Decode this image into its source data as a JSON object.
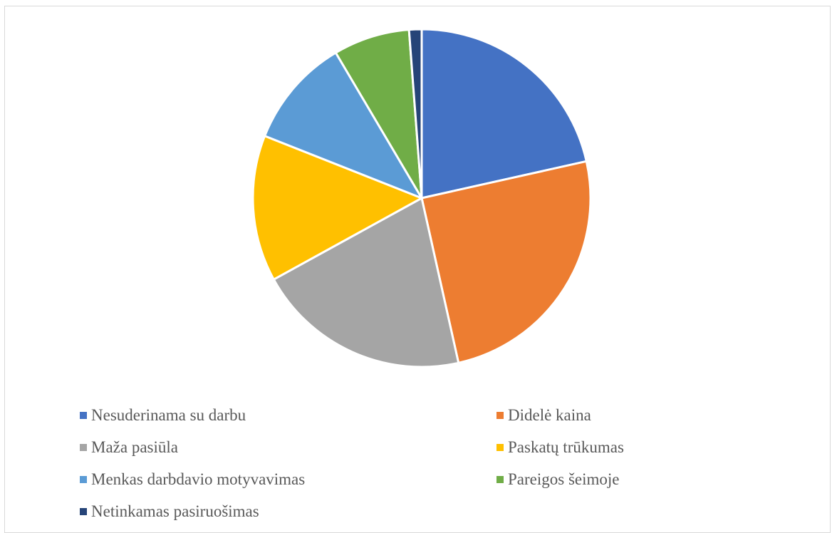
{
  "chart_data": {
    "type": "pie",
    "title": "",
    "legend_position": "bottom",
    "slices": [
      {
        "label": "Nesuderinama su darbu",
        "value": 21.5,
        "color": "#4472C4"
      },
      {
        "label": "Didelė kaina",
        "value": 25,
        "color": "#ED7D31"
      },
      {
        "label": "Maža pasiūla",
        "value": 20.5,
        "color": "#A5A5A5"
      },
      {
        "label": "Paskatų trūkumas",
        "value": 14,
        "color": "#FFC000"
      },
      {
        "label": "Menkas darbdavio motyvavimas",
        "value": 10.5,
        "color": "#5B9BD5"
      },
      {
        "label": "Pareigos šeimoje",
        "value": 7.3,
        "color": "#70AD47"
      },
      {
        "label": "Netinkamas pasiruošimas",
        "value": 1.2,
        "color": "#264478"
      }
    ]
  }
}
